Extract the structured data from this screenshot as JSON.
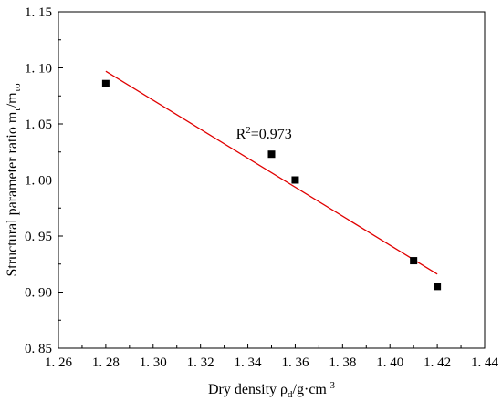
{
  "chart_data": {
    "type": "scatter",
    "title": "",
    "xlabel": {
      "base": "Dry density  ρ",
      "sub1": "d",
      "mid": "/g·cm",
      "sup": "-3"
    },
    "ylabel": {
      "base": "Structural parameter ratio m",
      "sub1": "τ",
      "mid": "/m",
      "sub2": "τo"
    },
    "xlim": [
      1.26,
      1.44
    ],
    "ylim": [
      0.85,
      1.15
    ],
    "x_ticks": [
      "1. 26",
      "1. 28",
      "1. 30",
      "1. 32",
      "1. 34",
      "1. 36",
      "1. 38",
      "1. 40",
      "1. 42",
      "1. 44"
    ],
    "y_ticks": [
      "0. 85",
      "0. 90",
      "0. 95",
      "1. 00",
      "1. 05",
      "1. 10",
      "1. 15"
    ],
    "series": [
      {
        "marker": "square",
        "color": "#000000",
        "points": [
          {
            "x": 1.28,
            "y": 1.086
          },
          {
            "x": 1.35,
            "y": 1.023
          },
          {
            "x": 1.36,
            "y": 1.0
          },
          {
            "x": 1.41,
            "y": 0.928
          },
          {
            "x": 1.42,
            "y": 0.905
          }
        ]
      }
    ],
    "fit_line": {
      "color": "#e00000",
      "x": [
        1.28,
        1.42
      ],
      "y": [
        1.097,
        0.916
      ]
    },
    "annotation": {
      "base": "R",
      "sup": "2",
      "rest": "=0.973",
      "x": 1.335,
      "y": 1.037
    },
    "grid": false,
    "legend": "none"
  }
}
